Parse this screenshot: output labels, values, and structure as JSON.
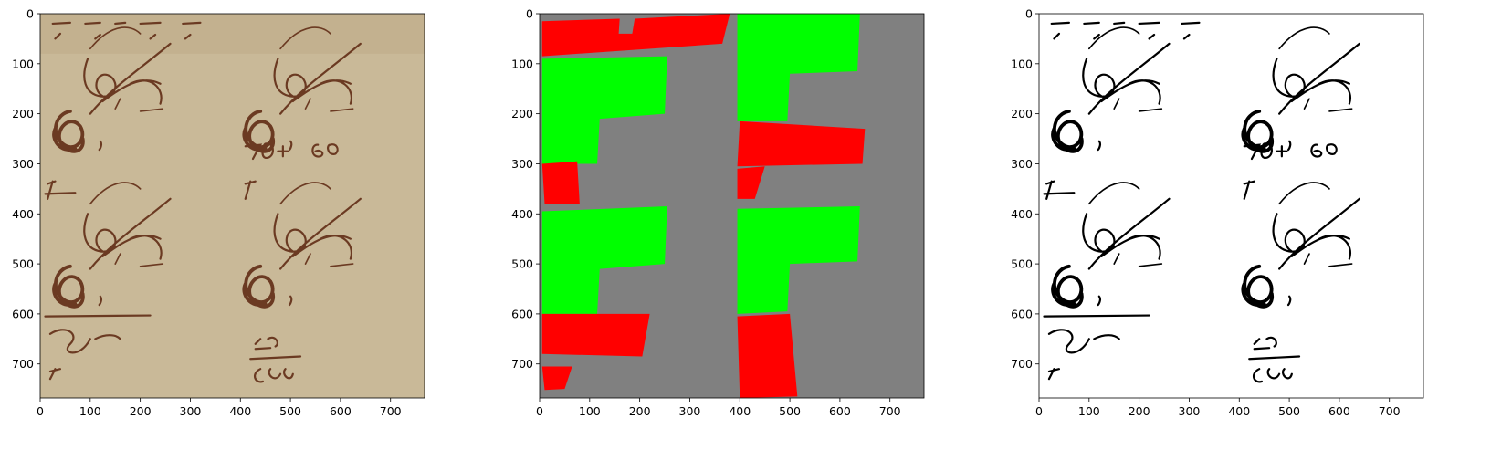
{
  "chart_data": [
    {
      "type": "image",
      "xlim": [
        0,
        768
      ],
      "ylim": [
        768,
        0
      ],
      "xticks": [
        0,
        100,
        200,
        300,
        400,
        500,
        600,
        700
      ],
      "yticks": [
        0,
        100,
        200,
        300,
        400,
        500,
        600,
        700
      ]
    },
    {
      "type": "image",
      "xlim": [
        0,
        768
      ],
      "ylim": [
        768,
        0
      ],
      "xticks": [
        0,
        100,
        200,
        300,
        400,
        500,
        600,
        700
      ],
      "yticks": [
        0,
        100,
        200,
        300,
        400,
        500,
        600,
        700
      ]
    },
    {
      "type": "image",
      "xlim": [
        0,
        768
      ],
      "ylim": [
        768,
        0
      ],
      "xticks": [
        0,
        100,
        200,
        300,
        400,
        500,
        600,
        700
      ],
      "yticks": [
        0,
        100,
        200,
        300,
        400,
        500,
        600,
        700
      ]
    }
  ]
}
